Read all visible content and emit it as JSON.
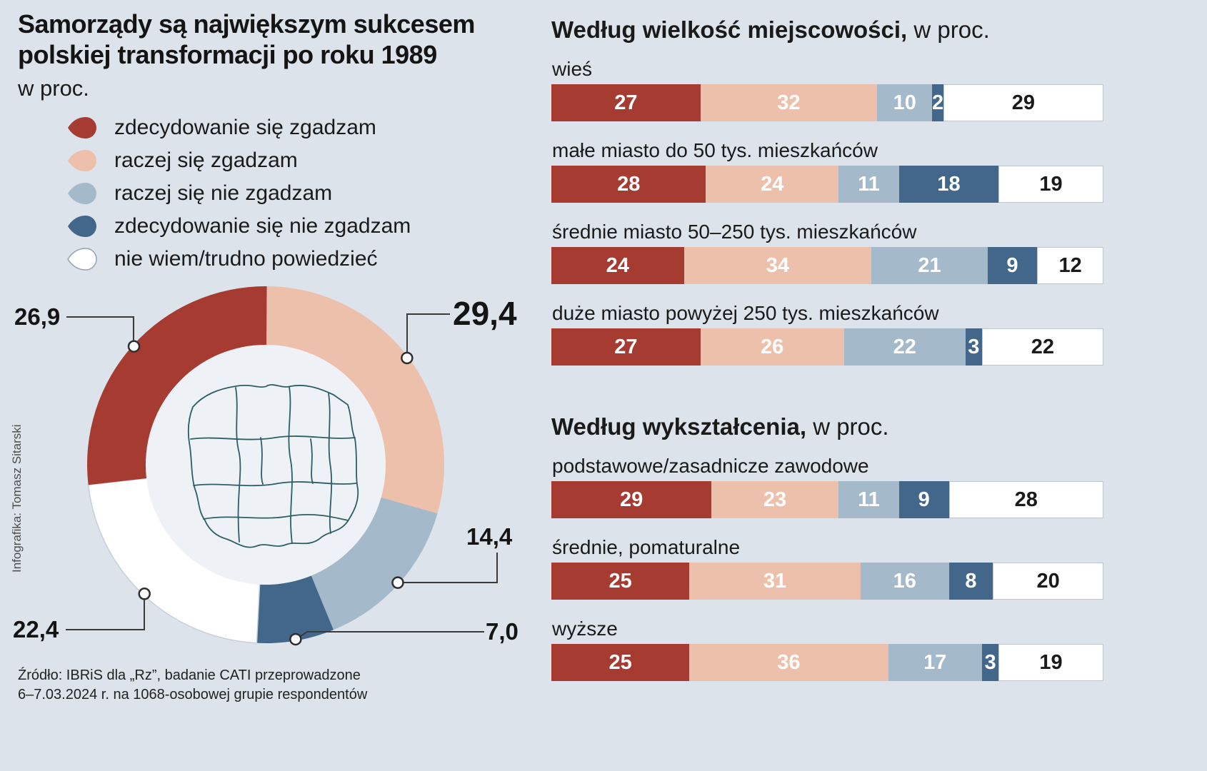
{
  "palette": {
    "segments": [
      "#a63c31",
      "#edc0ac",
      "#a4b9ca",
      "#42678b",
      "#ffffff"
    ],
    "white_segment_border": "#bcc6d1",
    "background": "#dce3eb",
    "donut_hole": "#eef2f7",
    "map_stroke": "#2b5f63"
  },
  "header": {
    "title_line1": "Samorządy są największym sukcesem",
    "title_line2": "polskiej transformacji po roku 1989",
    "subtitle": "w proc."
  },
  "legend": {
    "items": [
      {
        "label": "zdecydowanie się zgadzam",
        "color": "#a63c31"
      },
      {
        "label": "raczej się zgadzam",
        "color": "#edc0ac"
      },
      {
        "label": "raczej się nie zgadzam",
        "color": "#a4b9ca"
      },
      {
        "label": "zdecydowanie się nie zgadzam",
        "color": "#42678b"
      },
      {
        "label": "nie wiem/trudno powiedzieć",
        "color": "#ffffff"
      }
    ]
  },
  "footer": {
    "credit": "Infografika: Tomasz Sitarski",
    "source_line1": "Źródło: IBRiS dla „Rz”, badanie CATI przeprowadzone",
    "source_line2": "6–7.03.2024 r. na 1068-osobowej grupie respondentów"
  },
  "chart_data": [
    {
      "type": "pie",
      "variant": "donut",
      "title": "Samorządy są największym sukcesem polskiej transformacji po roku 1989",
      "unit": "w proc.",
      "labels": [
        "zdecydowanie się zgadzam",
        "raczej się zgadzam",
        "raczej się nie zgadzam",
        "zdecydowanie się nie zgadzam",
        "nie wiem/trudno powiedzieć"
      ],
      "values": [
        26.9,
        29.4,
        14.4,
        7.0,
        22.4
      ],
      "display_values": [
        "26,9",
        "29,4",
        "14,4",
        "7,0",
        "22,4"
      ],
      "colors": [
        "#a63c31",
        "#edc0ac",
        "#a4b9ca",
        "#42678b",
        "#ffffff"
      ],
      "start_angle_deg": 0,
      "clockwise": true,
      "draw_order": [
        1,
        2,
        3,
        4,
        0
      ],
      "center_graphic": "poland-voivodeships-map"
    },
    {
      "type": "bar",
      "stacked": true,
      "orientation": "horizontal",
      "title_bold": "Według wielkość miejscowości,",
      "title_light": "w proc.",
      "series": [
        "zdecydowanie się zgadzam",
        "raczej się zgadzam",
        "raczej się nie zgadzam",
        "zdecydowanie się nie zgadzam",
        "nie wiem/trudno powiedzieć"
      ],
      "categories": [
        "wieś",
        "małe miasto do 50 tys. mieszkańców",
        "średnie miasto 50–250 tys. mieszkańców",
        "duże miasto powyżej 250 tys. mieszkańców"
      ],
      "rows": [
        [
          27,
          32,
          10,
          2,
          29
        ],
        [
          28,
          24,
          11,
          18,
          19
        ],
        [
          24,
          34,
          21,
          9,
          12
        ],
        [
          27,
          26,
          22,
          3,
          22
        ]
      ],
      "xlim": [
        0,
        100
      ]
    },
    {
      "type": "bar",
      "stacked": true,
      "orientation": "horizontal",
      "title_bold": "Według wykształcenia,",
      "title_light": "w proc.",
      "series": [
        "zdecydowanie się zgadzam",
        "raczej się zgadzam",
        "raczej się nie zgadzam",
        "zdecydowanie się nie zgadzam",
        "nie wiem/trudno powiedzieć"
      ],
      "categories": [
        "podstawowe/zasadnicze zawodowe",
        "średnie, pomaturalne",
        "wyższe"
      ],
      "rows": [
        [
          29,
          23,
          11,
          9,
          28
        ],
        [
          25,
          31,
          16,
          8,
          20
        ],
        [
          25,
          36,
          17,
          3,
          19
        ]
      ],
      "xlim": [
        0,
        100
      ]
    }
  ]
}
